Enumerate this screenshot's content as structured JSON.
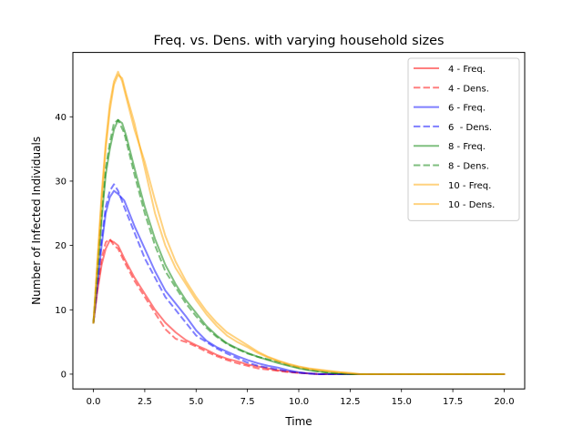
{
  "chart_data": {
    "type": "line",
    "title": "Freq. vs. Dens. with varying household sizes",
    "xlabel": "Time",
    "ylabel": "Number of Infected Individuals",
    "xlim": [
      -1.0,
      21.0
    ],
    "ylim": [
      -2.3,
      50.0
    ],
    "xticks": [
      0.0,
      2.5,
      5.0,
      7.5,
      10.0,
      12.5,
      15.0,
      17.5,
      20.0
    ],
    "xtick_labels": [
      "0.0",
      "2.5",
      "5.0",
      "7.5",
      "10.0",
      "12.5",
      "15.0",
      "17.5",
      "20.0"
    ],
    "yticks": [
      0,
      10,
      20,
      30,
      40
    ],
    "ytick_labels": [
      "0",
      "10",
      "20",
      "30",
      "40"
    ],
    "grid": false,
    "legend_position": "top-right",
    "series": [
      {
        "name": "4 - Freq.",
        "color": "#ff0000",
        "dash": "solid",
        "points": [
          [
            0,
            8
          ],
          [
            0.2,
            13
          ],
          [
            0.4,
            17
          ],
          [
            0.6,
            19.5
          ],
          [
            0.8,
            20.8
          ],
          [
            1.0,
            20.5
          ],
          [
            1.2,
            20
          ],
          [
            1.5,
            18
          ],
          [
            2.0,
            15
          ],
          [
            2.5,
            12.5
          ],
          [
            3.0,
            10
          ],
          [
            3.5,
            8
          ],
          [
            4.0,
            6.5
          ],
          [
            4.5,
            5.3
          ],
          [
            5.0,
            4.5
          ],
          [
            5.5,
            3.8
          ],
          [
            6.0,
            3.0
          ],
          [
            6.5,
            2.4
          ],
          [
            7.0,
            2.0
          ],
          [
            7.5,
            1.5
          ],
          [
            8.0,
            1.2
          ],
          [
            8.5,
            0.9
          ],
          [
            9.0,
            0.6
          ],
          [
            9.5,
            0.4
          ],
          [
            10.0,
            0.2
          ],
          [
            10.5,
            0.1
          ],
          [
            11.0,
            0
          ],
          [
            20.0,
            0
          ]
        ]
      },
      {
        "name": "4 - Dens.",
        "color": "#ff0000",
        "dash": "dashed",
        "points": [
          [
            0,
            8
          ],
          [
            0.2,
            13.5
          ],
          [
            0.4,
            18
          ],
          [
            0.6,
            20.5
          ],
          [
            0.8,
            21
          ],
          [
            1.0,
            20
          ],
          [
            1.2,
            19.5
          ],
          [
            1.5,
            17.5
          ],
          [
            2.0,
            14.5
          ],
          [
            2.5,
            12
          ],
          [
            3.0,
            9.5
          ],
          [
            3.5,
            7
          ],
          [
            4.0,
            5.5
          ],
          [
            4.5,
            5
          ],
          [
            5.0,
            4.3
          ],
          [
            5.5,
            3.5
          ],
          [
            6.0,
            2.8
          ],
          [
            6.5,
            2.2
          ],
          [
            7.0,
            1.7
          ],
          [
            7.5,
            1.3
          ],
          [
            8.0,
            0.9
          ],
          [
            8.5,
            0.7
          ],
          [
            9.0,
            0.5
          ],
          [
            9.5,
            0.3
          ],
          [
            10.0,
            0.2
          ],
          [
            11.0,
            0
          ],
          [
            20.0,
            0
          ]
        ]
      },
      {
        "name": "6 - Freq.",
        "color": "#0000ff",
        "dash": "solid",
        "points": [
          [
            0,
            8
          ],
          [
            0.2,
            14
          ],
          [
            0.4,
            20
          ],
          [
            0.6,
            25
          ],
          [
            0.8,
            27.5
          ],
          [
            1.0,
            28.5
          ],
          [
            1.2,
            28
          ],
          [
            1.5,
            27
          ],
          [
            2.0,
            23
          ],
          [
            2.5,
            19.5
          ],
          [
            3.0,
            16
          ],
          [
            3.5,
            13
          ],
          [
            4.0,
            11
          ],
          [
            4.5,
            9
          ],
          [
            5.0,
            6.8
          ],
          [
            5.5,
            5.2
          ],
          [
            6.0,
            4.2
          ],
          [
            6.5,
            3.5
          ],
          [
            7.0,
            2.8
          ],
          [
            7.5,
            2.2
          ],
          [
            8.0,
            1.7
          ],
          [
            8.5,
            1.3
          ],
          [
            9.0,
            1.0
          ],
          [
            9.5,
            0.6
          ],
          [
            10.0,
            0.3
          ],
          [
            10.5,
            0.1
          ],
          [
            11.0,
            0
          ],
          [
            20.0,
            0
          ]
        ]
      },
      {
        "name": "6  - Dens.",
        "color": "#0000ff",
        "dash": "dashed",
        "points": [
          [
            0,
            8
          ],
          [
            0.2,
            15
          ],
          [
            0.4,
            21
          ],
          [
            0.6,
            26
          ],
          [
            0.8,
            28.5
          ],
          [
            1.0,
            29.5
          ],
          [
            1.2,
            28.5
          ],
          [
            1.5,
            26
          ],
          [
            2.0,
            22
          ],
          [
            2.5,
            18
          ],
          [
            3.0,
            15
          ],
          [
            3.5,
            12
          ],
          [
            4.0,
            10
          ],
          [
            4.5,
            8
          ],
          [
            5.0,
            6
          ],
          [
            5.5,
            5
          ],
          [
            6.0,
            4
          ],
          [
            6.5,
            3.2
          ],
          [
            7.0,
            2.5
          ],
          [
            7.5,
            1.8
          ],
          [
            8.0,
            1.3
          ],
          [
            8.5,
            1.0
          ],
          [
            9.0,
            0.7
          ],
          [
            9.5,
            0.4
          ],
          [
            10.0,
            0.2
          ],
          [
            11.0,
            0
          ],
          [
            20.0,
            0
          ]
        ]
      },
      {
        "name": "8 - Freq.",
        "color": "#008000",
        "dash": "solid",
        "points": [
          [
            0,
            8
          ],
          [
            0.2,
            16
          ],
          [
            0.4,
            24
          ],
          [
            0.6,
            31
          ],
          [
            0.8,
            35
          ],
          [
            1.0,
            38
          ],
          [
            1.2,
            39.5
          ],
          [
            1.4,
            39
          ],
          [
            1.6,
            37
          ],
          [
            2.0,
            32
          ],
          [
            2.5,
            26
          ],
          [
            3.0,
            21
          ],
          [
            3.5,
            17
          ],
          [
            4.0,
            14
          ],
          [
            4.5,
            11.5
          ],
          [
            5.0,
            9.5
          ],
          [
            5.5,
            7.5
          ],
          [
            6.0,
            6
          ],
          [
            6.5,
            4.8
          ],
          [
            7.0,
            4
          ],
          [
            7.5,
            3.3
          ],
          [
            8.0,
            2.7
          ],
          [
            8.5,
            2.2
          ],
          [
            9.0,
            1.7
          ],
          [
            9.5,
            1.3
          ],
          [
            10.0,
            0.9
          ],
          [
            10.5,
            0.6
          ],
          [
            11.0,
            0.4
          ],
          [
            11.5,
            0.2
          ],
          [
            12.0,
            0.1
          ],
          [
            12.5,
            0
          ],
          [
            20.0,
            0
          ]
        ]
      },
      {
        "name": "8 - Dens.",
        "color": "#008000",
        "dash": "dashed",
        "points": [
          [
            0,
            8
          ],
          [
            0.2,
            17
          ],
          [
            0.4,
            25
          ],
          [
            0.6,
            32
          ],
          [
            0.8,
            36
          ],
          [
            1.0,
            39
          ],
          [
            1.2,
            39.5
          ],
          [
            1.5,
            37.5
          ],
          [
            2.0,
            31
          ],
          [
            2.5,
            25
          ],
          [
            3.0,
            20
          ],
          [
            3.5,
            16
          ],
          [
            4.0,
            13.5
          ],
          [
            4.5,
            11
          ],
          [
            5.0,
            9
          ],
          [
            5.5,
            7.2
          ],
          [
            6.0,
            5.8
          ],
          [
            6.5,
            4.7
          ],
          [
            7.0,
            3.9
          ],
          [
            7.5,
            3.2
          ],
          [
            8.0,
            2.7
          ],
          [
            8.5,
            2.3
          ],
          [
            9.0,
            1.9
          ],
          [
            9.5,
            1.4
          ],
          [
            10.0,
            1.0
          ],
          [
            10.5,
            0.7
          ],
          [
            11.0,
            0.4
          ],
          [
            11.5,
            0.2
          ],
          [
            12.0,
            0.1
          ],
          [
            12.5,
            0
          ],
          [
            20.0,
            0
          ]
        ]
      },
      {
        "name": "10 - Freq.",
        "color": "#ffa500",
        "dash": "solid",
        "points": [
          [
            0,
            8
          ],
          [
            0.2,
            17
          ],
          [
            0.4,
            27
          ],
          [
            0.6,
            35
          ],
          [
            0.8,
            41
          ],
          [
            1.0,
            45
          ],
          [
            1.2,
            46.5
          ],
          [
            1.4,
            46
          ],
          [
            1.6,
            43.5
          ],
          [
            2.0,
            39
          ],
          [
            2.5,
            32
          ],
          [
            3.0,
            25
          ],
          [
            3.5,
            20
          ],
          [
            4.0,
            16.5
          ],
          [
            4.5,
            14
          ],
          [
            5.0,
            11.5
          ],
          [
            5.5,
            9.3
          ],
          [
            6.0,
            7.5
          ],
          [
            6.5,
            6
          ],
          [
            7.0,
            5
          ],
          [
            7.5,
            4.2
          ],
          [
            8.0,
            3.3
          ],
          [
            8.5,
            2.6
          ],
          [
            9.0,
            2.0
          ],
          [
            9.5,
            1.5
          ],
          [
            10.0,
            1.1
          ],
          [
            10.5,
            0.8
          ],
          [
            11.0,
            0.6
          ],
          [
            11.5,
            0.4
          ],
          [
            12.0,
            0.3
          ],
          [
            12.5,
            0.1
          ],
          [
            13.0,
            0
          ],
          [
            20.0,
            0
          ]
        ]
      },
      {
        "name": "10 - Dens.",
        "color": "#ffa500",
        "dash": "solid",
        "points": [
          [
            0,
            8
          ],
          [
            0.2,
            18
          ],
          [
            0.4,
            28
          ],
          [
            0.6,
            36
          ],
          [
            0.8,
            42
          ],
          [
            1.0,
            45.5
          ],
          [
            1.2,
            47
          ],
          [
            1.4,
            45.5
          ],
          [
            1.6,
            43
          ],
          [
            2.0,
            38
          ],
          [
            2.5,
            33
          ],
          [
            3.0,
            27
          ],
          [
            3.5,
            21.5
          ],
          [
            4.0,
            17.5
          ],
          [
            4.5,
            14.5
          ],
          [
            5.0,
            12
          ],
          [
            5.5,
            9.8
          ],
          [
            6.0,
            8
          ],
          [
            6.5,
            6.5
          ],
          [
            7.0,
            5.5
          ],
          [
            7.5,
            4.5
          ],
          [
            8.0,
            3.5
          ],
          [
            8.5,
            2.7
          ],
          [
            9.0,
            2.1
          ],
          [
            9.5,
            1.6
          ],
          [
            10.0,
            1.2
          ],
          [
            10.5,
            0.9
          ],
          [
            11.0,
            0.7
          ],
          [
            11.5,
            0.5
          ],
          [
            12.0,
            0.3
          ],
          [
            12.5,
            0.2
          ],
          [
            13.0,
            0
          ],
          [
            20.0,
            0
          ]
        ]
      }
    ]
  }
}
